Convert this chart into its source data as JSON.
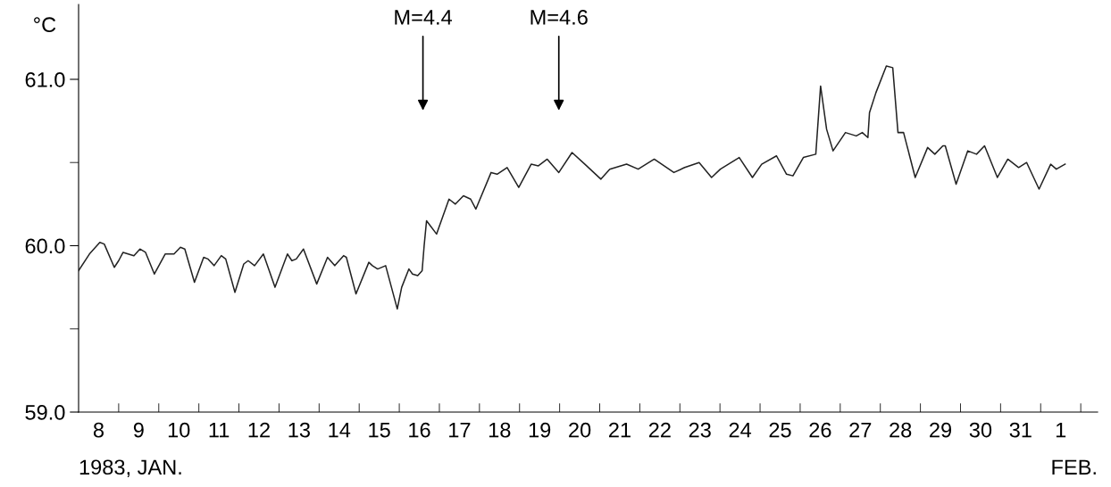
{
  "chart_data": {
    "type": "line",
    "ylabel": "°C",
    "xlabel": "1983, JAN.",
    "annotations": [
      {
        "text": "M=4.4",
        "x": "1983-01-16T14:10"
      },
      {
        "text": "M=4.6",
        "x": "1983-01-19T23:31"
      },
      "FEB."
    ],
    "xlim": [
      "1983-01-08T00:00",
      "1983-02-02T10:05"
    ],
    "xticks": [
      {
        "value": "1983-01-08T12:00",
        "label": "8"
      },
      {
        "value": "1983-01-09T00:00",
        "label": null
      },
      {
        "value": "1983-01-09T12:00",
        "label": "9"
      },
      {
        "value": "1983-01-10T00:00",
        "label": null
      },
      {
        "value": "1983-01-10T12:00",
        "label": "10"
      },
      {
        "value": "1983-01-11T00:00",
        "label": null
      },
      {
        "value": "1983-01-11T12:00",
        "label": "11"
      },
      {
        "value": "1983-01-12T00:00",
        "label": null
      },
      {
        "value": "1983-01-12T12:00",
        "label": "12"
      },
      {
        "value": "1983-01-13T00:00",
        "label": null
      },
      {
        "value": "1983-01-13T12:00",
        "label": "13"
      },
      {
        "value": "1983-01-14T00:00",
        "label": null
      },
      {
        "value": "1983-01-14T12:00",
        "label": "14"
      },
      {
        "value": "1983-01-15T00:00",
        "label": null
      },
      {
        "value": "1983-01-15T12:00",
        "label": "15"
      },
      {
        "value": "1983-01-16T00:00",
        "label": null
      },
      {
        "value": "1983-01-16T12:00",
        "label": "16"
      },
      {
        "value": "1983-01-17T00:00",
        "label": null
      },
      {
        "value": "1983-01-17T12:00",
        "label": "17"
      },
      {
        "value": "1983-01-18T00:00",
        "label": null
      },
      {
        "value": "1983-01-18T12:00",
        "label": "18"
      },
      {
        "value": "1983-01-19T00:00",
        "label": null
      },
      {
        "value": "1983-01-19T12:00",
        "label": "19"
      },
      {
        "value": "1983-01-20T00:00",
        "label": null
      },
      {
        "value": "1983-01-20T12:00",
        "label": "20"
      },
      {
        "value": "1983-01-21T00:00",
        "label": null
      },
      {
        "value": "1983-01-21T12:00",
        "label": "21"
      },
      {
        "value": "1983-01-22T00:00",
        "label": null
      },
      {
        "value": "1983-01-22T12:00",
        "label": "22"
      },
      {
        "value": "1983-01-23T00:00",
        "label": null
      },
      {
        "value": "1983-01-23T12:00",
        "label": "23"
      },
      {
        "value": "1983-01-24T00:00",
        "label": null
      },
      {
        "value": "1983-01-24T12:00",
        "label": "24"
      },
      {
        "value": "1983-01-25T00:00",
        "label": null
      },
      {
        "value": "1983-01-25T12:00",
        "label": "25"
      },
      {
        "value": "1983-01-26T00:00",
        "label": null
      },
      {
        "value": "1983-01-26T12:00",
        "label": "26"
      },
      {
        "value": "1983-01-27T00:00",
        "label": null
      },
      {
        "value": "1983-01-27T12:00",
        "label": "27"
      },
      {
        "value": "1983-01-28T00:00",
        "label": null
      },
      {
        "value": "1983-01-28T12:00",
        "label": "28"
      },
      {
        "value": "1983-01-29T00:00",
        "label": null
      },
      {
        "value": "1983-01-29T12:00",
        "label": "29"
      },
      {
        "value": "1983-01-30T00:00",
        "label": null
      },
      {
        "value": "1983-01-30T12:00",
        "label": "30"
      },
      {
        "value": "1983-01-31T00:00",
        "label": null
      },
      {
        "value": "1983-01-31T12:00",
        "label": "31"
      },
      {
        "value": "1983-02-01T00:00",
        "label": null
      },
      {
        "value": "1983-02-01T12:00",
        "label": "1"
      },
      {
        "value": "1983-02-02T00:00",
        "label": null
      }
    ],
    "ylim": [
      59.0,
      61.45
    ],
    "yticks": [
      {
        "value": 59.0,
        "label": "59.0"
      },
      {
        "value": 59.5,
        "label": null
      },
      {
        "value": 60.0,
        "label": "60.0"
      },
      {
        "value": 60.5,
        "label": null
      },
      {
        "value": 61.0,
        "label": "61.0"
      }
    ],
    "grid": false,
    "legend": false,
    "marker": "none",
    "line_style": "solid",
    "series": [
      {
        "color": "#222222",
        "x": [
          "1983-01-08T00:00",
          "1983-01-08T06:29",
          "1983-01-08T12:43",
          "1983-01-08T15:22",
          "1983-01-08T21:22",
          "1983-01-09T00:00",
          "1983-01-09T02:38",
          "1983-01-09T09:07",
          "1983-01-09T12:43",
          "1983-01-09T16:05",
          "1983-01-09T21:22",
          "1983-01-10T03:50",
          "1983-01-10T09:07",
          "1983-01-10T12:58",
          "1983-01-10T15:36",
          "1983-01-10T21:22",
          "1983-01-11T02:53",
          "1983-01-11T05:31",
          "1983-01-11T09:07",
          "1983-01-11T13:26",
          "1983-01-11T16:05",
          "1983-01-11T21:36",
          "1983-01-12T02:53",
          "1983-01-12T05:31",
          "1983-01-12T09:22",
          "1983-01-12T14:38",
          "1983-01-12T21:36",
          "1983-01-13T05:02",
          "1983-01-13T07:41",
          "1983-01-13T10:19",
          "1983-01-13T14:38",
          "1983-01-13T22:34",
          "1983-01-14T05:02",
          "1983-01-14T09:22",
          "1983-01-14T14:38",
          "1983-01-14T16:19",
          "1983-01-14T22:05",
          "1983-01-15T05:46",
          "1983-01-15T07:55",
          "1983-01-15T11:02",
          "1983-01-15T15:50",
          "1983-01-15T22:48",
          "1983-01-16T01:26",
          "1983-01-16T05:46",
          "1983-01-16T07:55",
          "1983-01-16T11:02",
          "1983-01-16T13:41",
          "1983-01-16T14:53",
          "1983-01-16T16:19",
          "1983-01-16T22:19",
          "1983-01-17T05:46",
          "1983-01-17T09:36",
          "1983-01-17T14:24",
          "1983-01-17T18:43",
          "1983-01-17T21:50",
          "1983-01-18T06:58",
          "1983-01-18T10:34",
          "1983-01-18T16:34",
          "1983-01-18T23:31",
          "1983-01-19T06:58",
          "1983-01-19T11:17",
          "1983-01-19T16:34",
          "1983-01-19T23:31",
          "1983-01-20T07:26",
          "1983-01-20T15:07",
          "1983-01-21T00:43",
          "1983-01-21T06:00",
          "1983-01-21T16:05",
          "1983-01-21T23:02",
          "1983-01-22T08:38",
          "1983-01-22T20:24",
          "1983-01-23T02:53",
          "1983-01-23T11:31",
          "1983-01-23T18:58",
          "1983-01-24T00:14",
          "1983-01-24T11:31",
          "1983-01-24T19:26",
          "1983-01-25T00:58",
          "1983-01-25T09:50",
          "1983-01-25T15:50",
          "1983-01-25T19:41",
          "1983-01-26T01:55",
          "1983-01-26T09:22",
          "1983-01-26T12:14",
          "1983-01-26T15:50",
          "1983-01-26T19:41",
          "1983-01-27T03:07",
          "1983-01-27T09:36",
          "1983-01-27T13:12",
          "1983-01-27T16:34",
          "1983-01-27T17:31",
          "1983-01-27T21:22",
          "1983-01-28T03:36",
          "1983-01-28T07:26",
          "1983-01-28T10:34",
          "1983-01-28T13:55",
          "1983-01-28T20:53",
          "1983-01-29T04:19",
          "1983-01-29T08:38",
          "1983-01-29T13:26",
          "1983-01-29T14:53",
          "1983-01-29T21:22",
          "1983-01-30T04:19",
          "1983-01-30T09:36",
          "1983-01-30T14:24",
          "1983-01-30T22:05",
          "1983-01-31T04:19",
          "1983-01-31T10:48",
          "1983-01-31T15:36",
          "1983-01-31T23:02",
          "1983-02-01T06:00",
          "1983-02-01T09:22",
          "1983-02-01T14:38"
        ],
        "values": [
          59.85,
          59.95,
          60.02,
          60.01,
          59.87,
          59.91,
          59.96,
          59.94,
          59.98,
          59.96,
          59.83,
          59.95,
          59.95,
          59.99,
          59.98,
          59.78,
          59.93,
          59.92,
          59.88,
          59.94,
          59.92,
          59.72,
          59.89,
          59.91,
          59.88,
          59.95,
          59.75,
          59.95,
          59.91,
          59.92,
          59.98,
          59.77,
          59.93,
          59.88,
          59.94,
          59.93,
          59.71,
          59.9,
          59.88,
          59.86,
          59.88,
          59.62,
          59.75,
          59.86,
          59.83,
          59.82,
          59.85,
          60.0,
          60.15,
          60.07,
          60.28,
          60.25,
          60.3,
          60.28,
          60.22,
          60.44,
          60.43,
          60.47,
          60.35,
          60.49,
          60.48,
          60.52,
          60.44,
          60.56,
          60.49,
          60.4,
          60.46,
          60.49,
          60.46,
          60.52,
          60.44,
          60.47,
          60.5,
          60.41,
          60.46,
          60.53,
          60.41,
          60.49,
          60.54,
          60.43,
          60.42,
          60.53,
          60.55,
          60.96,
          60.7,
          60.57,
          60.68,
          60.66,
          60.68,
          60.65,
          60.8,
          60.92,
          61.08,
          61.07,
          60.68,
          60.68,
          60.41,
          60.59,
          60.55,
          60.6,
          60.6,
          60.37,
          60.57,
          60.55,
          60.6,
          60.41,
          60.52,
          60.47,
          60.5,
          60.34,
          60.49,
          60.46,
          60.49
        ]
      }
    ]
  }
}
